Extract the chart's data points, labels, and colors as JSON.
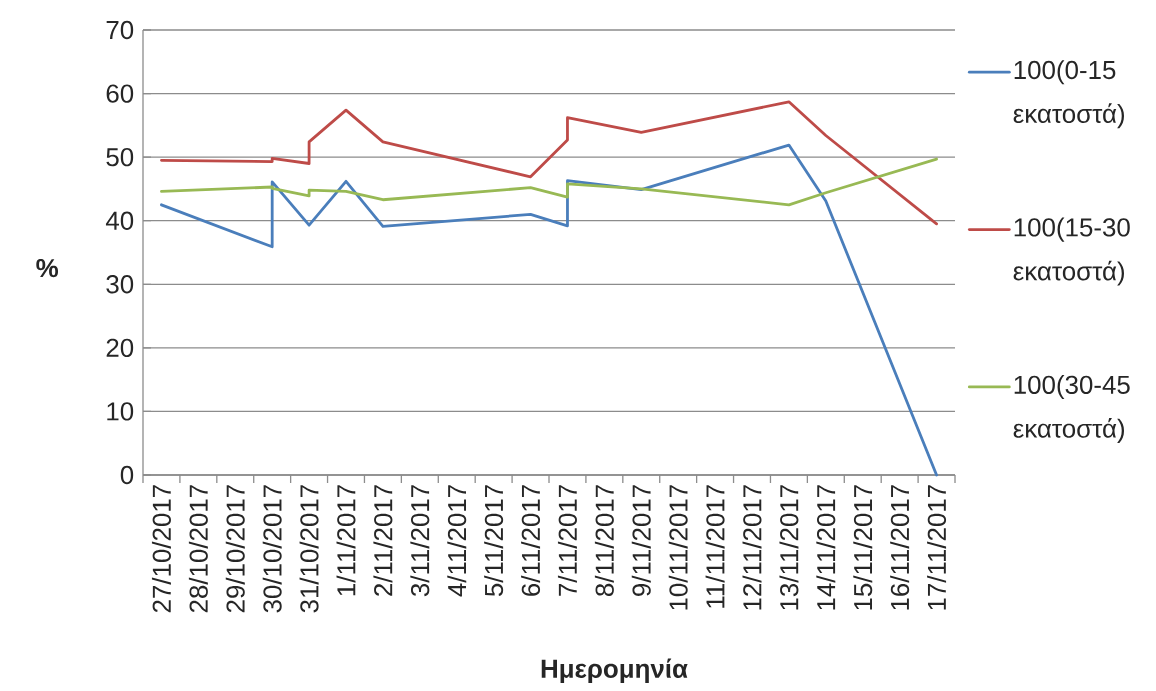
{
  "chart_data": {
    "type": "line",
    "xlabel": "Ημερομηνία",
    "ylabel": "%",
    "x": [
      "2017-10-27",
      "2017-10-30",
      "2017-10-30",
      "2017-10-31",
      "2017-10-31",
      "2017-11-01",
      "2017-11-02",
      "2017-11-06",
      "2017-11-07",
      "2017-11-07",
      "2017-11-09",
      "2017-11-13",
      "2017-11-14",
      "2017-11-17"
    ],
    "series": [
      {
        "name": "100(0-15 εκατοστά)",
        "color": "#4a7ebb",
        "values": [
          42.5,
          35.9,
          46.1,
          39.3,
          39.3,
          46.2,
          39.1,
          41.0,
          39.2,
          46.3,
          44.9,
          51.9,
          43.1,
          0
        ]
      },
      {
        "name": "100(15-30 εκατοστά)",
        "color": "#be4b48",
        "values": [
          49.5,
          49.3,
          49.8,
          49.0,
          52.4,
          57.4,
          52.4,
          46.9,
          52.7,
          56.2,
          53.9,
          58.7,
          53.4,
          39.5
        ]
      },
      {
        "name": "100(30-45 εκατοστά)",
        "color": "#98b954",
        "values": [
          44.6,
          45.3,
          45.1,
          43.9,
          44.8,
          44.6,
          43.3,
          45.2,
          43.7,
          45.8,
          45.0,
          42.5,
          44.4,
          49.7
        ]
      }
    ],
    "xlim": [
      "2017-10-26T12:00",
      "2017-11-17T12:00"
    ],
    "xticks": [
      {
        "value": "2017-10-27",
        "label": "27/10/2017"
      },
      {
        "value": "2017-10-28",
        "label": "28/10/2017"
      },
      {
        "value": "2017-10-29",
        "label": "29/10/2017"
      },
      {
        "value": "2017-10-30",
        "label": "30/10/2017"
      },
      {
        "value": "2017-10-31",
        "label": "31/10/2017"
      },
      {
        "value": "2017-11-01",
        "label": "1/11/2017"
      },
      {
        "value": "2017-11-02",
        "label": "2/11/2017"
      },
      {
        "value": "2017-11-03",
        "label": "3/11/2017"
      },
      {
        "value": "2017-11-04",
        "label": "4/11/2017"
      },
      {
        "value": "2017-11-05",
        "label": "5/11/2017"
      },
      {
        "value": "2017-11-06",
        "label": "6/11/2017"
      },
      {
        "value": "2017-11-07",
        "label": "7/11/2017"
      },
      {
        "value": "2017-11-08",
        "label": "8/11/2017"
      },
      {
        "value": "2017-11-09",
        "label": "9/11/2017"
      },
      {
        "value": "2017-11-10",
        "label": "10/11/2017"
      },
      {
        "value": "2017-11-11",
        "label": "11/11/2017"
      },
      {
        "value": "2017-11-12",
        "label": "12/11/2017"
      },
      {
        "value": "2017-11-13",
        "label": "13/11/2017"
      },
      {
        "value": "2017-11-14",
        "label": "14/11/2017"
      },
      {
        "value": "2017-11-15",
        "label": "15/11/2017"
      },
      {
        "value": "2017-11-16",
        "label": "16/11/2017"
      },
      {
        "value": "2017-11-17",
        "label": "17/11/2017"
      },
      {
        "value": "2017-10-26T12:00",
        "label": null
      },
      {
        "value": "2017-10-27T12:00",
        "label": null
      },
      {
        "value": "2017-10-28T12:00",
        "label": null
      },
      {
        "value": "2017-10-29T12:00",
        "label": null
      },
      {
        "value": "2017-10-30T12:00",
        "label": null
      },
      {
        "value": "2017-10-31T12:00",
        "label": null
      },
      {
        "value": "2017-11-01T12:00",
        "label": null
      },
      {
        "value": "2017-11-02T12:00",
        "label": null
      },
      {
        "value": "2017-11-03T12:00",
        "label": null
      },
      {
        "value": "2017-11-04T12:00",
        "label": null
      },
      {
        "value": "2017-11-05T12:00",
        "label": null
      },
      {
        "value": "2017-11-06T12:00",
        "label": null
      },
      {
        "value": "2017-11-07T12:00",
        "label": null
      },
      {
        "value": "2017-11-08T12:00",
        "label": null
      },
      {
        "value": "2017-11-09T12:00",
        "label": null
      },
      {
        "value": "2017-11-10T12:00",
        "label": null
      },
      {
        "value": "2017-11-11T12:00",
        "label": null
      },
      {
        "value": "2017-11-12T12:00",
        "label": null
      },
      {
        "value": "2017-11-13T12:00",
        "label": null
      },
      {
        "value": "2017-11-14T12:00",
        "label": null
      },
      {
        "value": "2017-11-15T12:00",
        "label": null
      },
      {
        "value": "2017-11-16T12:00",
        "label": null
      },
      {
        "value": "2017-11-17T12:00",
        "label": null
      }
    ],
    "ylim": [
      0,
      70
    ],
    "yticks": [
      0,
      10,
      20,
      30,
      40,
      50,
      60,
      70
    ],
    "grid": "y",
    "legend": "right"
  }
}
